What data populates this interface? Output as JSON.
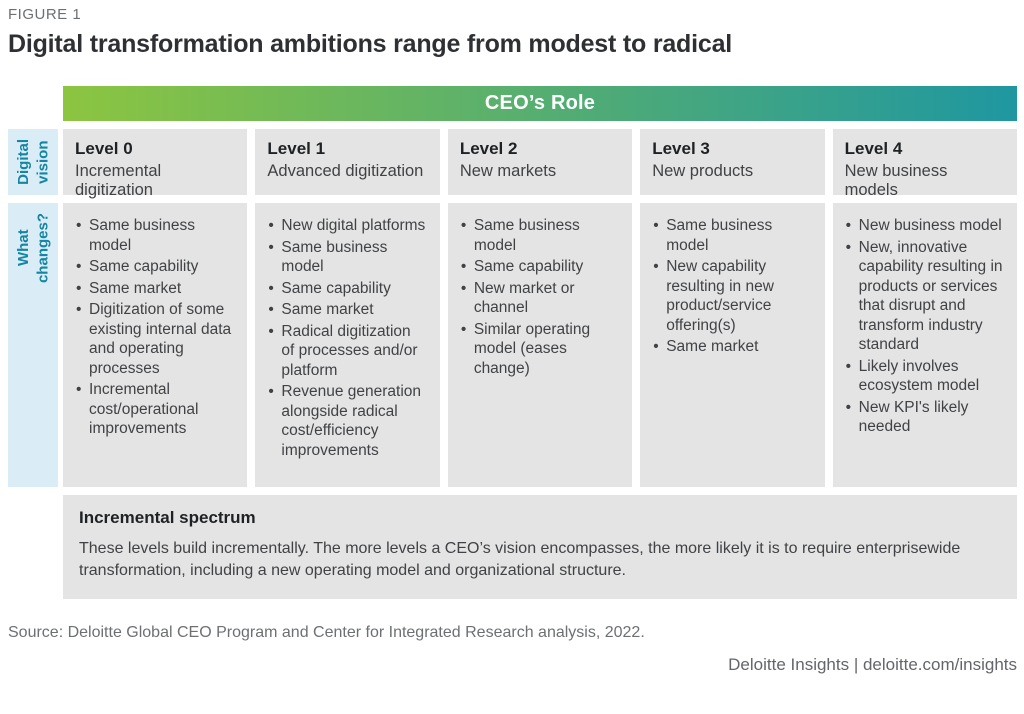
{
  "figure_label": "FIGURE 1",
  "title": "Digital transformation ambitions range from modest to radical",
  "header_bar": {
    "label": "CEO’s Role"
  },
  "row_labels": [
    {
      "id": "digital-vision",
      "label": "Digital\nvision"
    },
    {
      "id": "what-changes",
      "label": "What\nchanges?"
    }
  ],
  "columns": [
    {
      "level": "Level 0",
      "subtitle": "Incremental digitization",
      "bullets": [
        "Same business model",
        "Same capability",
        "Same market",
        "Digitization of some existing internal data and operating processes",
        "Incremental cost/operational improvements"
      ]
    },
    {
      "level": "Level 1",
      "subtitle": "Advanced digitization",
      "bullets": [
        "New digital platforms",
        "Same business model",
        "Same capability",
        "Same market",
        "Radical digitization of processes and/or platform",
        "Revenue generation alongside radical cost/efficiency improvements"
      ]
    },
    {
      "level": "Level 2",
      "subtitle": "New markets",
      "bullets": [
        "Same business model",
        "Same capability",
        "New market or channel",
        "Similar operating model (eases change)"
      ]
    },
    {
      "level": "Level 3",
      "subtitle": "New products",
      "bullets": [
        "Same business model",
        "New capability resulting in new product/service offering(s)",
        "Same market"
      ]
    },
    {
      "level": "Level 4",
      "subtitle": "New business models",
      "bullets": [
        "New business model",
        "New, innovative capability resulting in products or services that disrupt and transform industry standard",
        "Likely involves ecosystem model",
        "New KPI's likely needed"
      ]
    }
  ],
  "spectrum_note": {
    "heading": "Incremental spectrum",
    "body": "These levels build incrementally. The more levels a CEO’s vision encompasses, the more likely it is to require enterprisewide transformation, including a new operating model and organizational structure."
  },
  "source": "Source: Deloitte Global CEO Program and Center for Integrated Research analysis, 2022.",
  "footer": "Deloitte Insights | deloitte.com/insights",
  "colors": {
    "gradient_start": "#8CC540",
    "gradient_end": "#1F97A1",
    "cell_bg": "#E4E4E4",
    "sidebar_bg": "#DAECF6",
    "sidebar_text": "#1486A4",
    "text_dark": "#2E3033",
    "text_body": "#404245",
    "text_muted": "#6D7073"
  }
}
